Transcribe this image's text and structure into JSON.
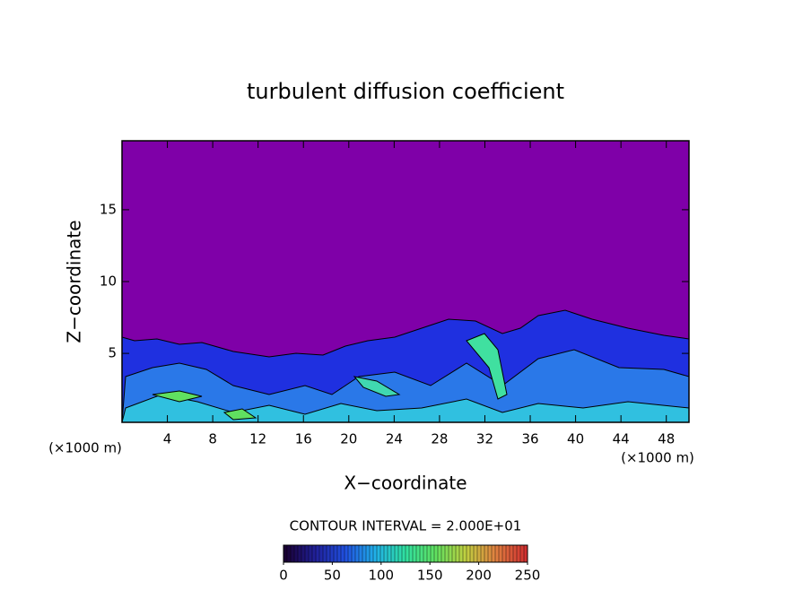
{
  "chart_data": {
    "type": "contour",
    "title": "turbulent diffusion coefficient",
    "x_label": "X−coordinate",
    "y_label": "Z−coordinate",
    "x_unit_label": "(×1000 m)",
    "xlim": [
      0,
      50
    ],
    "xticks": [
      4,
      8,
      12,
      16,
      20,
      24,
      28,
      32,
      36,
      40,
      44,
      48
    ],
    "ylim": [
      0.2,
      19.8
    ],
    "yticks": [
      5,
      10,
      15
    ],
    "contour_interval_label": "CONTOUR INTERVAL = 2.000E+01",
    "clim": [
      0,
      250
    ],
    "cticks": [
      0,
      50,
      100,
      150,
      200,
      250
    ],
    "colormap": [
      "#1a0033",
      "#20209a",
      "#2050e0",
      "#20b0e8",
      "#30e0a0",
      "#60e060",
      "#c0d040",
      "#e08040",
      "#d03030"
    ],
    "background_color": "#7f00a8"
  }
}
